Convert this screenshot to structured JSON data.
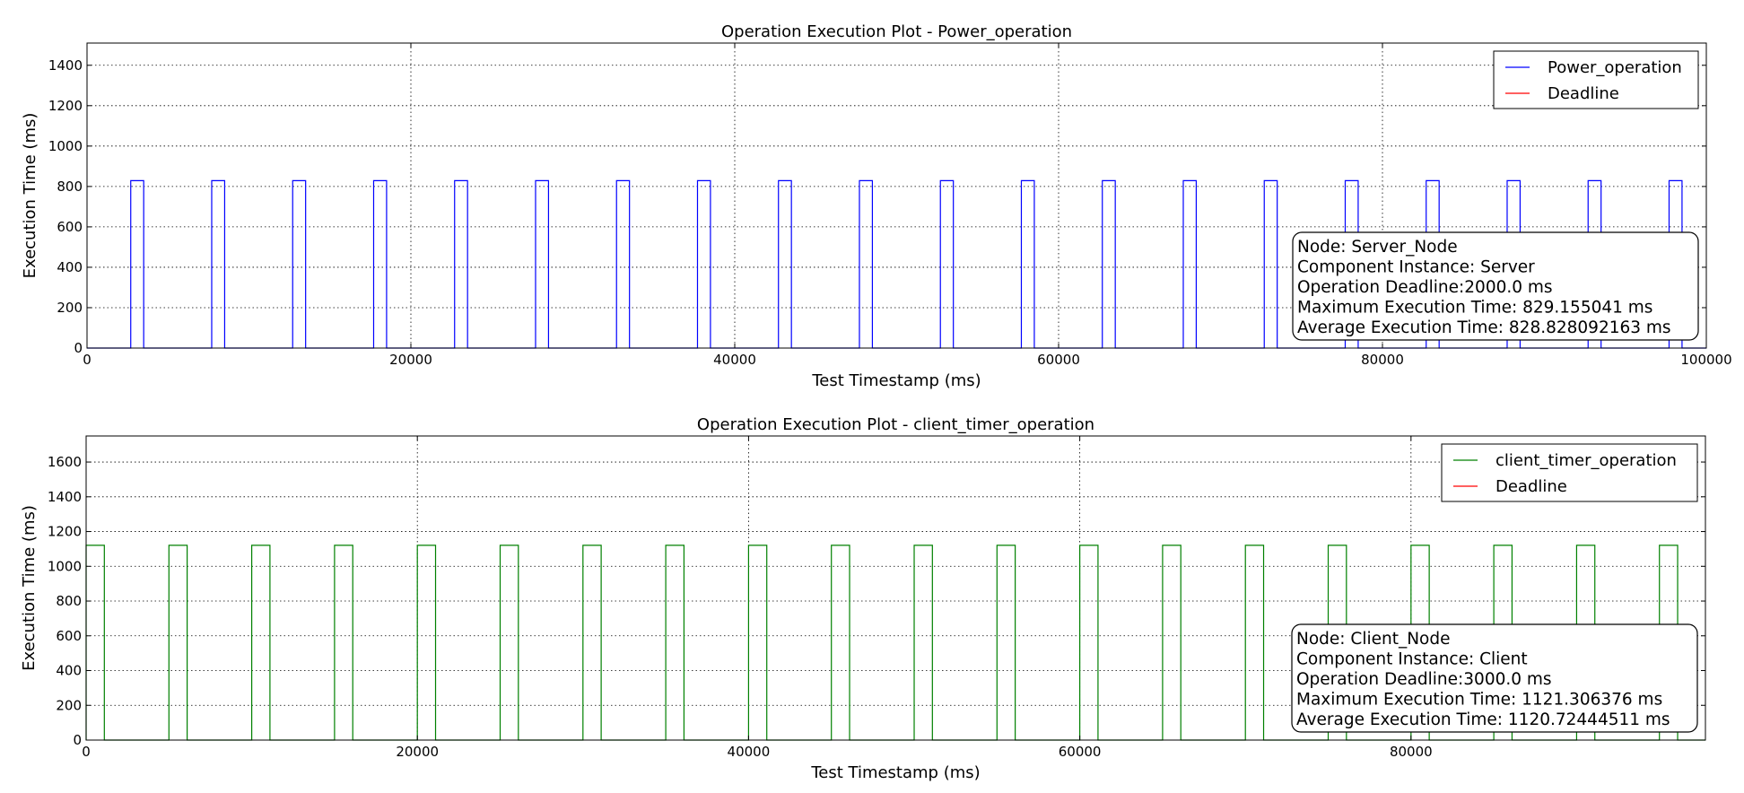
{
  "chart_data": [
    {
      "type": "line",
      "title": "Operation Execution Plot - Power_operation",
      "xlabel": "Test Timestamp (ms)",
      "ylabel": "Execution Time (ms)",
      "xlim": [
        0,
        100000
      ],
      "ylim": [
        0,
        1510
      ],
      "xticks": [
        0,
        20000,
        40000,
        60000,
        80000,
        100000
      ],
      "yticks": [
        0,
        200,
        400,
        600,
        800,
        1000,
        1200,
        1400
      ],
      "grid": true,
      "legend_position": "top-right",
      "series": [
        {
          "name": "Power_operation",
          "color": "#0000ff",
          "style": "step-pulses",
          "value": 829,
          "pulses": [
            [
              2700,
              3500
            ],
            [
              7700,
              8500
            ],
            [
              12700,
              13500
            ],
            [
              17700,
              18500
            ],
            [
              22700,
              23500
            ],
            [
              27700,
              28500
            ],
            [
              32700,
              33500
            ],
            [
              37700,
              38500
            ],
            [
              42700,
              43500
            ],
            [
              47700,
              48500
            ],
            [
              52700,
              53500
            ],
            [
              57700,
              58500
            ],
            [
              62700,
              63500
            ],
            [
              67700,
              68500
            ],
            [
              72700,
              73500
            ],
            [
              77700,
              78500
            ],
            [
              82700,
              83500
            ],
            [
              87700,
              88500
            ],
            [
              92700,
              93500
            ],
            [
              97700,
              98500
            ]
          ]
        },
        {
          "name": "Deadline",
          "color": "#ff0000",
          "value": 2000
        }
      ],
      "info_box": [
        "Node: Server_Node",
        "Component Instance: Server",
        "Operation Deadline:2000.0 ms",
        "Maximum Execution Time: 829.155041 ms",
        "Average Execution Time: 828.828092163 ms"
      ]
    },
    {
      "type": "line",
      "title": "Operation Execution Plot - client_timer_operation",
      "xlabel": "Test Timestamp (ms)",
      "ylabel": "Execution Time (ms)",
      "xlim": [
        0,
        100000
      ],
      "ylim": [
        0,
        1750
      ],
      "xticks": [
        0,
        20000,
        40000,
        60000,
        80000
      ],
      "yticks": [
        0,
        200,
        400,
        600,
        800,
        1000,
        1200,
        1400,
        1600
      ],
      "grid": true,
      "legend_position": "top-right",
      "series": [
        {
          "name": "client_timer_operation",
          "color": "#008000",
          "style": "step-pulses",
          "value": 1121,
          "pulses": [
            [
              0,
              1100
            ],
            [
              5000,
              6100
            ],
            [
              10000,
              11100
            ],
            [
              15000,
              16100
            ],
            [
              20000,
              21100
            ],
            [
              25000,
              26100
            ],
            [
              30000,
              31100
            ],
            [
              35000,
              36100
            ],
            [
              40000,
              41100
            ],
            [
              45000,
              46100
            ],
            [
              50000,
              51100
            ],
            [
              55000,
              56100
            ],
            [
              60000,
              61100
            ],
            [
              65000,
              66100
            ],
            [
              70000,
              71100
            ],
            [
              75000,
              76100
            ],
            [
              80000,
              81100
            ],
            [
              85000,
              86100
            ],
            [
              90000,
              91100
            ],
            [
              95000,
              96100
            ]
          ]
        },
        {
          "name": "Deadline",
          "color": "#ff0000",
          "value": 3000
        }
      ],
      "info_box": [
        "Node: Client_Node",
        "Component Instance: Client",
        "Operation Deadline:3000.0 ms",
        "Maximum Execution Time: 1121.306376 ms",
        "Average Execution Time: 1120.72444511 ms"
      ]
    }
  ]
}
